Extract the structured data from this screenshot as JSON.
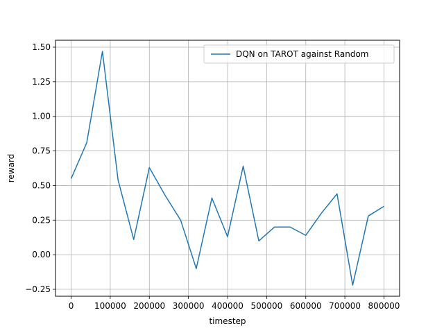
{
  "chart_data": {
    "type": "line",
    "title": "",
    "xlabel": "timestep",
    "ylabel": "reward",
    "xlim": [
      -40000,
      840000
    ],
    "ylim": [
      -0.3,
      1.55
    ],
    "xticks": [
      0,
      100000,
      200000,
      300000,
      400000,
      500000,
      600000,
      700000,
      800000
    ],
    "xtick_labels": [
      "0",
      "100000",
      "200000",
      "300000",
      "400000",
      "500000",
      "600000",
      "700000",
      "800000"
    ],
    "yticks": [
      -0.25,
      0.0,
      0.25,
      0.5,
      0.75,
      1.0,
      1.25,
      1.5
    ],
    "ytick_labels": [
      "−0.25",
      "0.00",
      "0.25",
      "0.50",
      "0.75",
      "1.00",
      "1.25",
      "1.50"
    ],
    "grid": true,
    "legend_position": "top-right",
    "series": [
      {
        "name": "DQN on TAROT against Random",
        "color": "#1f77b4",
        "x": [
          0,
          40000,
          80000,
          120000,
          160000,
          200000,
          240000,
          280000,
          320000,
          360000,
          400000,
          440000,
          480000,
          520000,
          560000,
          600000,
          640000,
          680000,
          720000,
          760000,
          800000
        ],
        "y": [
          0.55,
          0.81,
          1.47,
          0.54,
          0.11,
          0.63,
          0.43,
          0.25,
          -0.1,
          0.41,
          0.13,
          0.64,
          0.1,
          0.2,
          0.2,
          0.14,
          0.3,
          0.44,
          -0.22,
          0.28,
          0.35
        ]
      }
    ]
  }
}
